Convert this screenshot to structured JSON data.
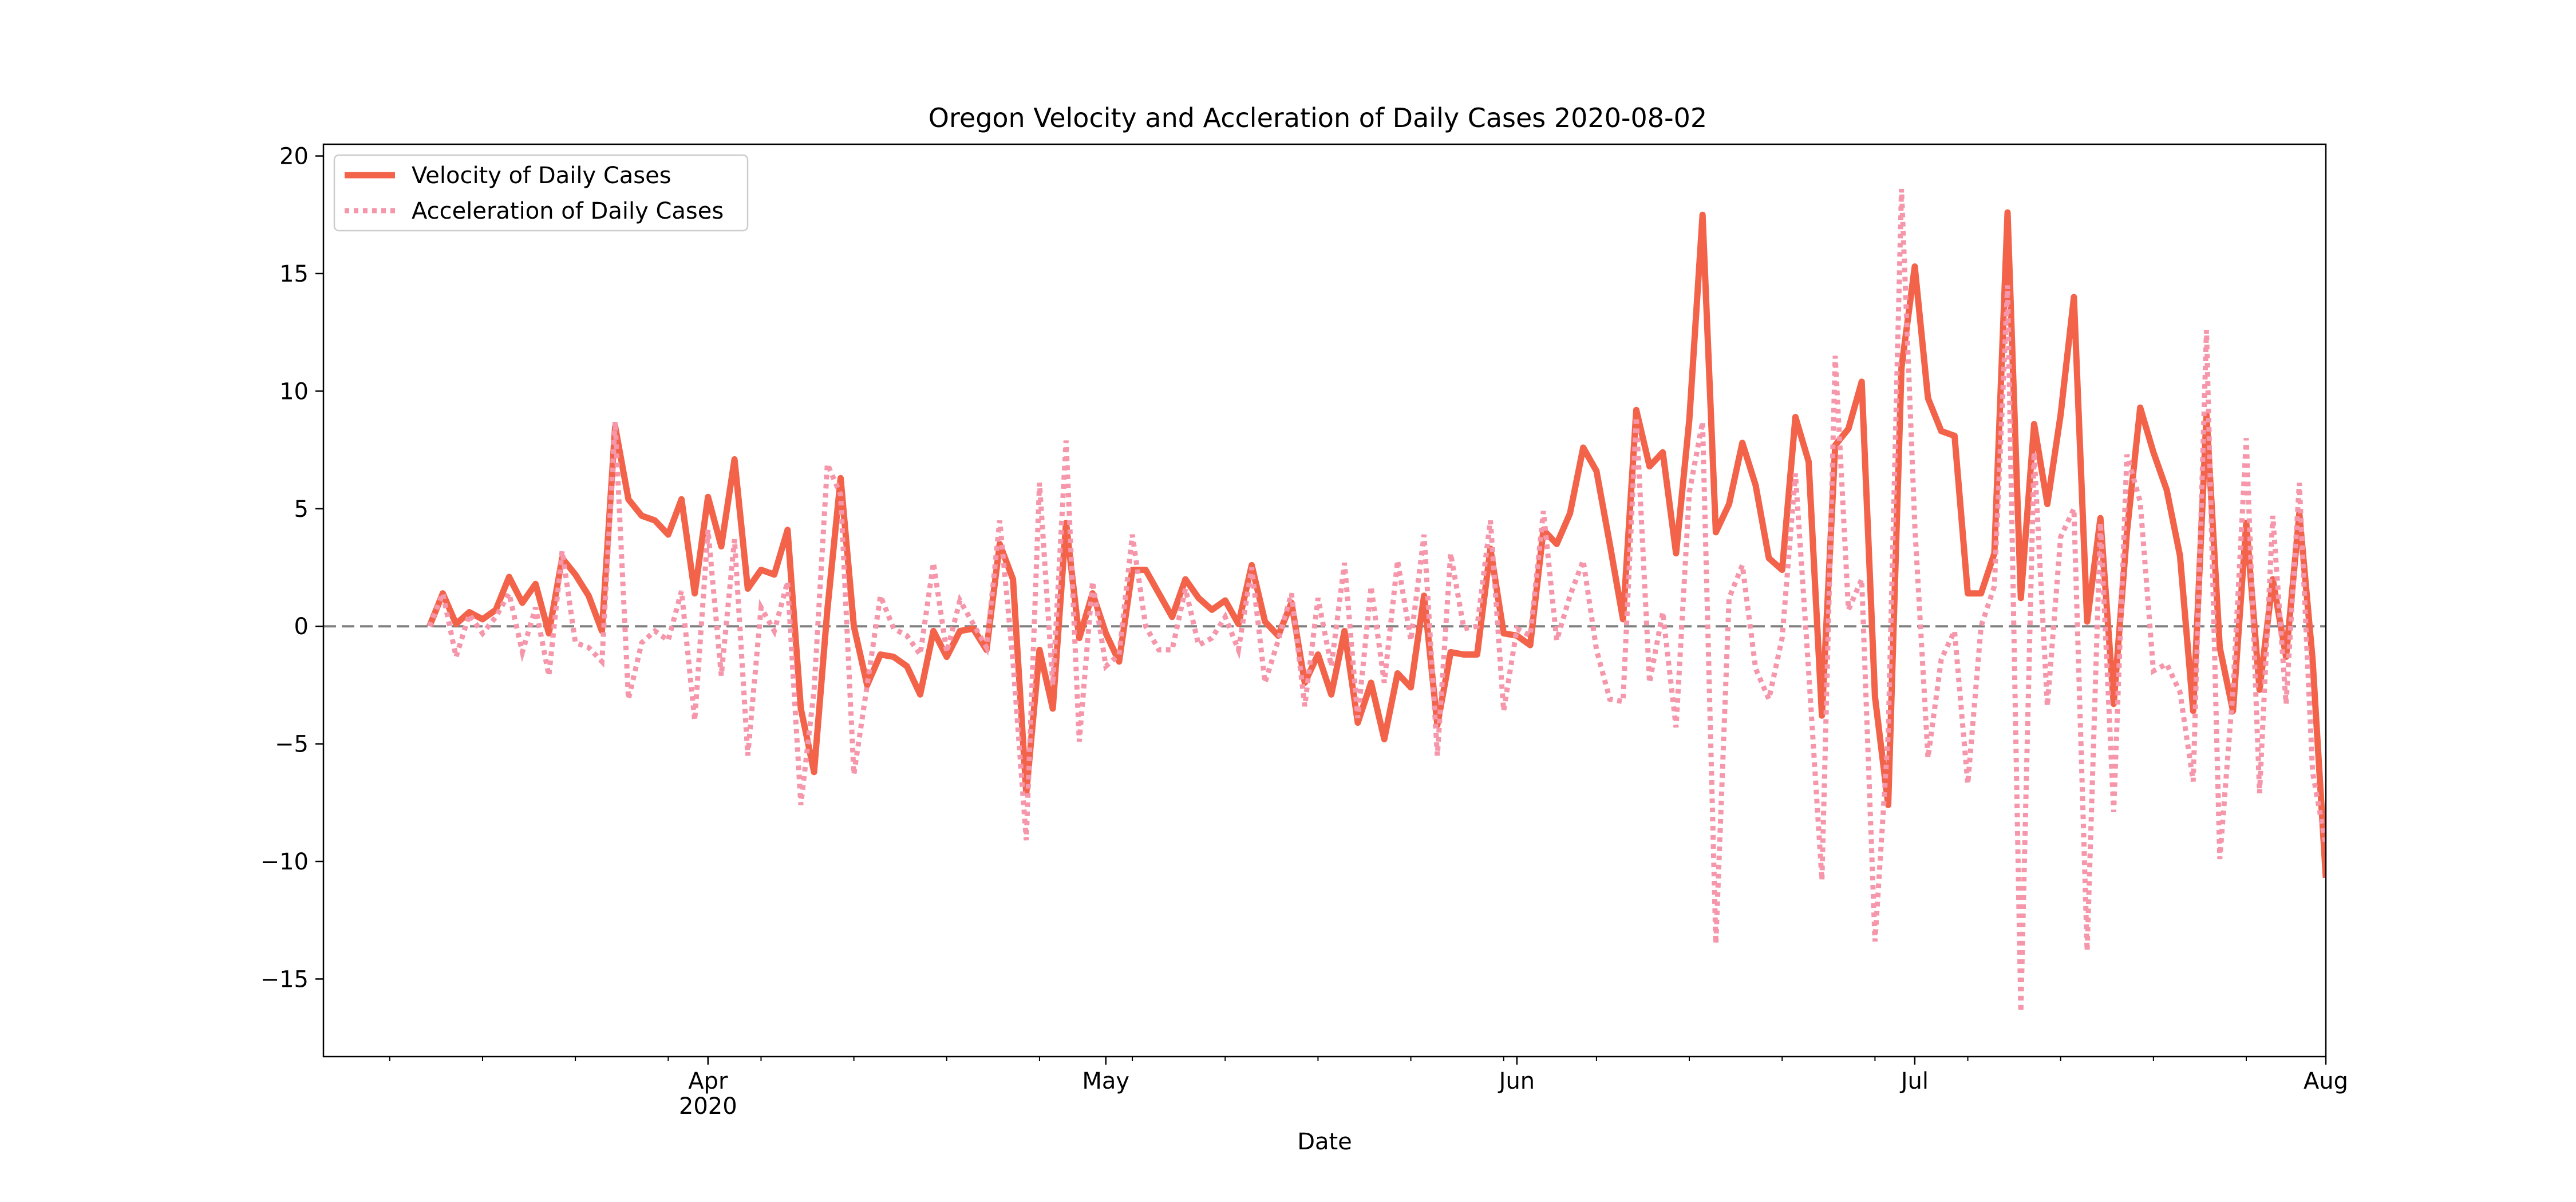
{
  "chart_data": {
    "type": "line",
    "title": "Oregon Velocity and Accleration of Daily Cases 2020-08-02",
    "xlabel": "Date",
    "ylabel": "",
    "x_start": "2020-03-11",
    "x_end": "2020-08-02",
    "xlim": [
      "2020-03-03",
      "2020-08-01"
    ],
    "ylim": [
      -18.3,
      20.5
    ],
    "y_ticks": [
      -15,
      -10,
      -5,
      0,
      5,
      10,
      15,
      20
    ],
    "x_ticks": [
      {
        "date": "2020-04-01",
        "label": "Apr",
        "sublabel": "2020"
      },
      {
        "date": "2020-05-01",
        "label": "May",
        "sublabel": ""
      },
      {
        "date": "2020-06-01",
        "label": "Jun",
        "sublabel": ""
      },
      {
        "date": "2020-07-01",
        "label": "Jul",
        "sublabel": ""
      },
      {
        "date": "2020-08-01",
        "label": "Aug",
        "sublabel": ""
      }
    ],
    "reference_line": {
      "y": 0,
      "style": "dashed",
      "color": "#808080"
    },
    "legend": {
      "position": "top-left"
    },
    "grid": false,
    "series": [
      {
        "name": "Velocity of Daily Cases",
        "style": "solid",
        "color": "#f2634a",
        "values": [
          0.0,
          1.4,
          0.1,
          0.6,
          0.3,
          0.7,
          2.1,
          1.0,
          1.8,
          -0.3,
          2.9,
          2.2,
          1.3,
          -0.2,
          8.5,
          5.4,
          4.7,
          4.5,
          3.9,
          5.4,
          1.4,
          5.5,
          3.4,
          7.1,
          1.6,
          2.4,
          2.2,
          4.1,
          -3.5,
          -6.2,
          0.7,
          6.3,
          0.0,
          -2.5,
          -1.2,
          -1.3,
          -1.7,
          -2.9,
          -0.2,
          -1.3,
          -0.2,
          -0.1,
          -1.0,
          3.5,
          2.0,
          -7.1,
          -1.0,
          -3.5,
          4.4,
          -0.5,
          1.4,
          -0.3,
          -1.5,
          2.4,
          2.4,
          1.4,
          0.4,
          2.0,
          1.2,
          0.7,
          1.1,
          0.1,
          2.6,
          0.2,
          -0.4,
          1.0,
          -2.4,
          -1.2,
          -2.9,
          -0.2,
          -4.1,
          -2.4,
          -4.8,
          -2.0,
          -2.6,
          1.3,
          -4.2,
          -1.1,
          -1.2,
          -1.2,
          3.3,
          -0.3,
          -0.4,
          -0.8,
          4.1,
          3.5,
          4.8,
          7.6,
          6.6,
          3.5,
          0.3,
          9.2,
          6.8,
          7.4,
          3.1,
          8.8,
          17.5,
          4.0,
          5.2,
          7.8,
          6.0,
          2.9,
          2.4,
          8.9,
          7.0,
          -3.8,
          7.7,
          8.4,
          10.4,
          -3.0,
          -7.6,
          11.0,
          15.3,
          9.7,
          8.3,
          8.1,
          1.4,
          1.4,
          3.1,
          17.6,
          1.2,
          8.6,
          5.2,
          9.0,
          14.0,
          0.2,
          4.6,
          -3.3,
          4.0,
          9.3,
          7.4,
          5.8,
          3.0,
          -3.6,
          9.0,
          -0.9,
          -3.6,
          4.4,
          -2.7,
          2.0,
          -1.3,
          4.8,
          -1.4,
          -10.7
        ]
      },
      {
        "name": "Acceleration of Daily Cases",
        "style": "dotted",
        "color": "#f596aa",
        "values": [
          0.0,
          1.4,
          -1.3,
          0.5,
          -0.3,
          0.4,
          1.4,
          -1.1,
          0.8,
          -2.1,
          3.2,
          -0.7,
          -0.9,
          -1.5,
          8.7,
          -3.1,
          -0.7,
          -0.2,
          -0.6,
          1.5,
          -4.0,
          4.1,
          -2.1,
          3.7,
          -5.5,
          0.8,
          -0.2,
          1.9,
          -7.6,
          -2.7,
          6.9,
          5.6,
          -6.3,
          -2.5,
          1.3,
          -0.1,
          -0.4,
          -1.2,
          2.7,
          -1.1,
          1.1,
          0.1,
          -0.9,
          4.5,
          -1.5,
          -9.1,
          6.1,
          -2.5,
          7.9,
          -4.9,
          1.9,
          -1.7,
          -1.2,
          3.9,
          0.0,
          -1.0,
          -1.0,
          1.6,
          -0.8,
          -0.5,
          0.4,
          -1.0,
          2.5,
          -2.4,
          -0.6,
          1.4,
          -3.4,
          1.2,
          -1.7,
          2.7,
          -3.9,
          1.7,
          -2.4,
          2.8,
          -0.6,
          3.9,
          -5.5,
          3.1,
          -0.1,
          0.0,
          4.5,
          -3.6,
          -0.1,
          -0.4,
          4.9,
          -0.6,
          1.3,
          2.8,
          -1.0,
          -3.1,
          -3.2,
          8.9,
          -2.4,
          0.6,
          -4.3,
          5.7,
          8.7,
          -13.5,
          1.2,
          2.6,
          -1.8,
          -3.1,
          -0.5,
          6.5,
          -1.9,
          -10.8,
          11.5,
          0.7,
          2.0,
          -13.4,
          -4.6,
          18.6,
          4.3,
          -5.6,
          -1.4,
          -0.2,
          -6.7,
          0.0,
          1.7,
          14.5,
          -16.4,
          7.4,
          -3.4,
          3.8,
          5.0,
          -13.8,
          4.4,
          -7.9,
          7.3,
          5.3,
          -1.9,
          -1.6,
          -2.8,
          -6.6,
          12.6,
          -9.9,
          -2.7,
          8.0,
          -7.1,
          4.7,
          -3.3,
          6.1,
          -6.2,
          -9.3
        ]
      }
    ]
  }
}
